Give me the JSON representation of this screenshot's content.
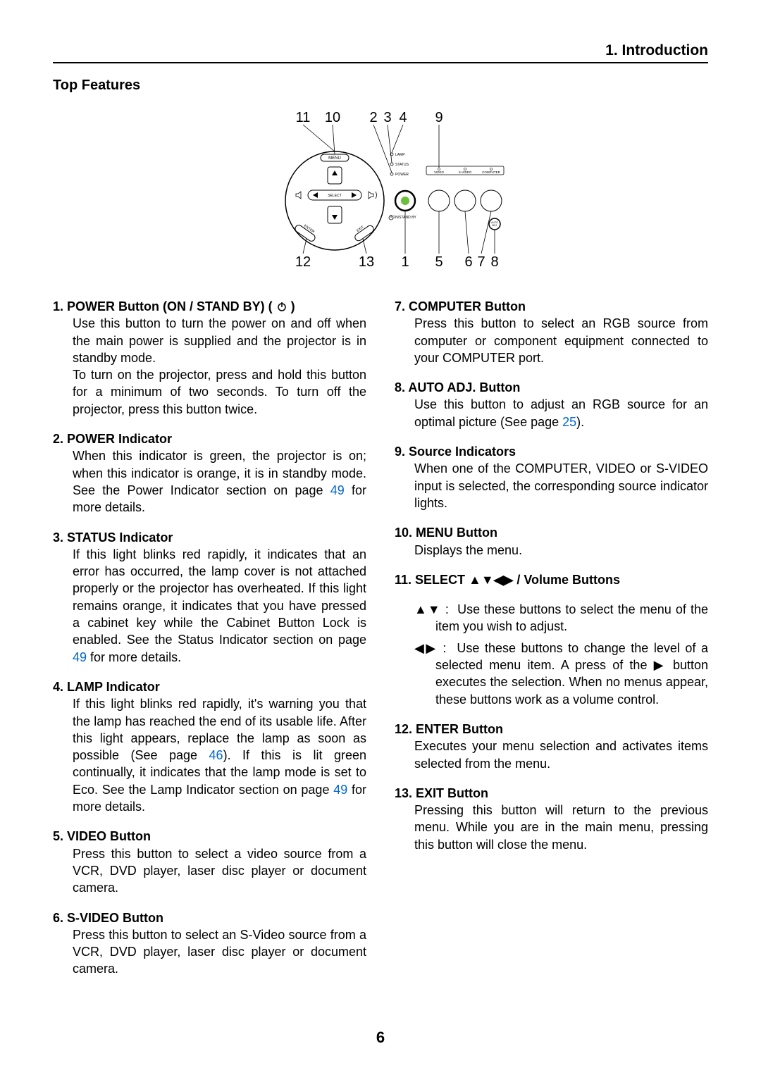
{
  "header": {
    "chapter": "1. Introduction"
  },
  "section_title": "Top Features",
  "page_number": "6",
  "diagram": {
    "top_numbers": [
      "11",
      "10",
      "2",
      "3",
      "4",
      "9"
    ],
    "bottom_numbers": [
      "12",
      "13",
      "1",
      "5",
      "6",
      "7",
      "8"
    ],
    "labels": {
      "menu": "MENU",
      "select": "SELECT",
      "enter": "ENTER",
      "exit": "EXIT",
      "lamp": "LAMP",
      "status": "STATUS",
      "power": "POWER",
      "onstandby": "ON/STAND BY",
      "video": "VIDEO",
      "svideo": "S-VIDEO",
      "computer": "COMPUTER",
      "autoadj": "AUTO ADJ."
    },
    "top_x": [
      310,
      352,
      410,
      430,
      452,
      503
    ],
    "bottom_x": [
      310,
      400,
      455,
      503,
      545,
      563,
      582
    ]
  },
  "left_col": [
    {
      "num": "1.",
      "title_pre": "POWER Button (ON / STAND BY) (",
      "title_post": ")",
      "has_power_icon": true,
      "body": "Use this button to turn the power on and off when the main power is supplied and the projector is in standby mode.",
      "body2": "To turn on the projector, press and hold this button for a minimum of two seconds. To turn off the projector, press this button twice."
    },
    {
      "num": "2.",
      "title": "POWER Indicator",
      "body_pre": "When this indicator is green, the projector is on; when this indicator is orange, it is in standby mode. See the Power Indicator section on page ",
      "link": "49",
      "body_post": " for more details."
    },
    {
      "num": "3.",
      "title": "STATUS Indicator",
      "body_pre": "If this light blinks red rapidly, it indicates that an error has occurred, the lamp cover is not attached properly or the projector has overheated. If this light remains orange, it indicates that you have pressed a cabinet key while the Cabinet Button Lock is enabled. See the Status Indicator section on page ",
      "link": "49",
      "body_post": " for more details."
    },
    {
      "num": "4.",
      "title": "LAMP Indicator",
      "body_pre": "If this light blinks red rapidly, it's warning you that the lamp has reached the end of its usable life. After this light appears, replace the lamp as soon as possible (See page ",
      "link": "46",
      "body_mid": "). If this is lit green continually, it indicates that the lamp mode is set to Eco. See the Lamp Indicator section on page ",
      "link2": "49",
      "body_post": " for more details."
    },
    {
      "num": "5.",
      "title": "VIDEO Button",
      "body": "Press this button to select a video source from a VCR, DVD player, laser disc player or document camera."
    },
    {
      "num": "6.",
      "title": "S-VIDEO Button",
      "body": "Press this button to select an S-Video source from a VCR, DVD player, laser disc player or document camera."
    }
  ],
  "right_col": {
    "items": [
      {
        "num": "7.",
        "title": "COMPUTER Button",
        "body": "Press this button to select an RGB source from computer or component equipment connected to your COMPUTER port."
      },
      {
        "num": "8.",
        "title": "AUTO ADJ. Button",
        "body_pre": "Use this button to adjust an RGB source for an optimal picture (See page ",
        "link": "25",
        "body_post": ")."
      },
      {
        "num": "9.",
        "title": "Source Indicators",
        "body": "When one of the COMPUTER, VIDEO or S-VIDEO input is selected, the corresponding source indicator lights."
      },
      {
        "num": "10.",
        "title": "MENU Button",
        "body": "Displays the menu."
      }
    ],
    "item11": {
      "num": "11.",
      "title": "SELECT ▲▼◀▶ / Volume Buttons",
      "sub1_sym": "▲▼ :",
      "sub1_body": "Use these buttons to select the menu of the item you wish to adjust.",
      "sub2_sym": "◀▶ :",
      "sub2_body": "Use these buttons to change the level of a selected menu item. A press of the ▶ button executes the selection. When no menus appear, these buttons work as a volume control."
    },
    "item12": {
      "num": "12.",
      "title": "ENTER Button",
      "body": "Executes your menu selection and activates items selected from the menu."
    },
    "item13": {
      "num": "13.",
      "title": "EXIT Button",
      "body": "Pressing this button will return to the previous menu. While you are in the main menu, pressing this button will close the menu."
    }
  }
}
